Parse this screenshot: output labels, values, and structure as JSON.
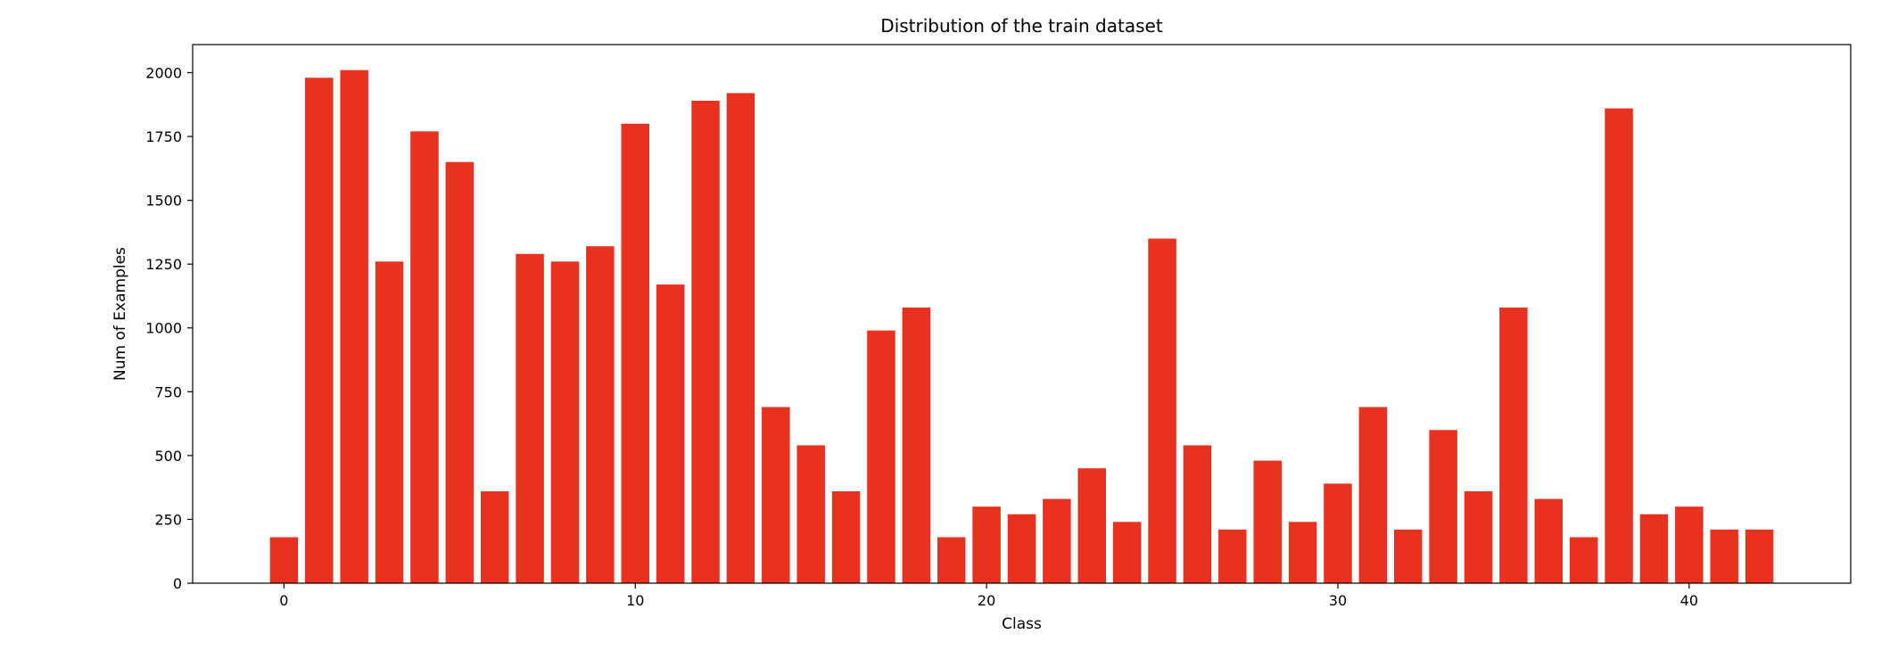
{
  "chart_data": {
    "type": "bar",
    "title": "Distribution of the train dataset",
    "xlabel": "Class",
    "ylabel": "Num of Examples",
    "x": [
      0,
      1,
      2,
      3,
      4,
      5,
      6,
      7,
      8,
      9,
      10,
      11,
      12,
      13,
      14,
      15,
      16,
      17,
      18,
      19,
      20,
      21,
      22,
      23,
      24,
      25,
      26,
      27,
      28,
      29,
      30,
      31,
      32,
      33,
      34,
      35,
      36,
      37,
      38,
      39,
      40,
      41,
      42
    ],
    "values": [
      180,
      1980,
      2010,
      1260,
      1770,
      1650,
      360,
      1290,
      1260,
      1320,
      1800,
      1170,
      1890,
      1920,
      690,
      540,
      360,
      990,
      1080,
      180,
      300,
      270,
      330,
      450,
      240,
      1350,
      540,
      210,
      480,
      240,
      390,
      690,
      210,
      600,
      360,
      1080,
      330,
      180,
      1860,
      270,
      300,
      210,
      210
    ],
    "xlim": [
      -2.6,
      44.6
    ],
    "ylim": [
      0,
      2110
    ],
    "xticks": [
      0,
      10,
      20,
      30,
      40
    ],
    "yticks": [
      0,
      250,
      500,
      750,
      1000,
      1250,
      1500,
      1750,
      2000
    ],
    "bar_width": 0.8,
    "bar_color": "#e8311e",
    "grid": false,
    "legend": "none"
  }
}
